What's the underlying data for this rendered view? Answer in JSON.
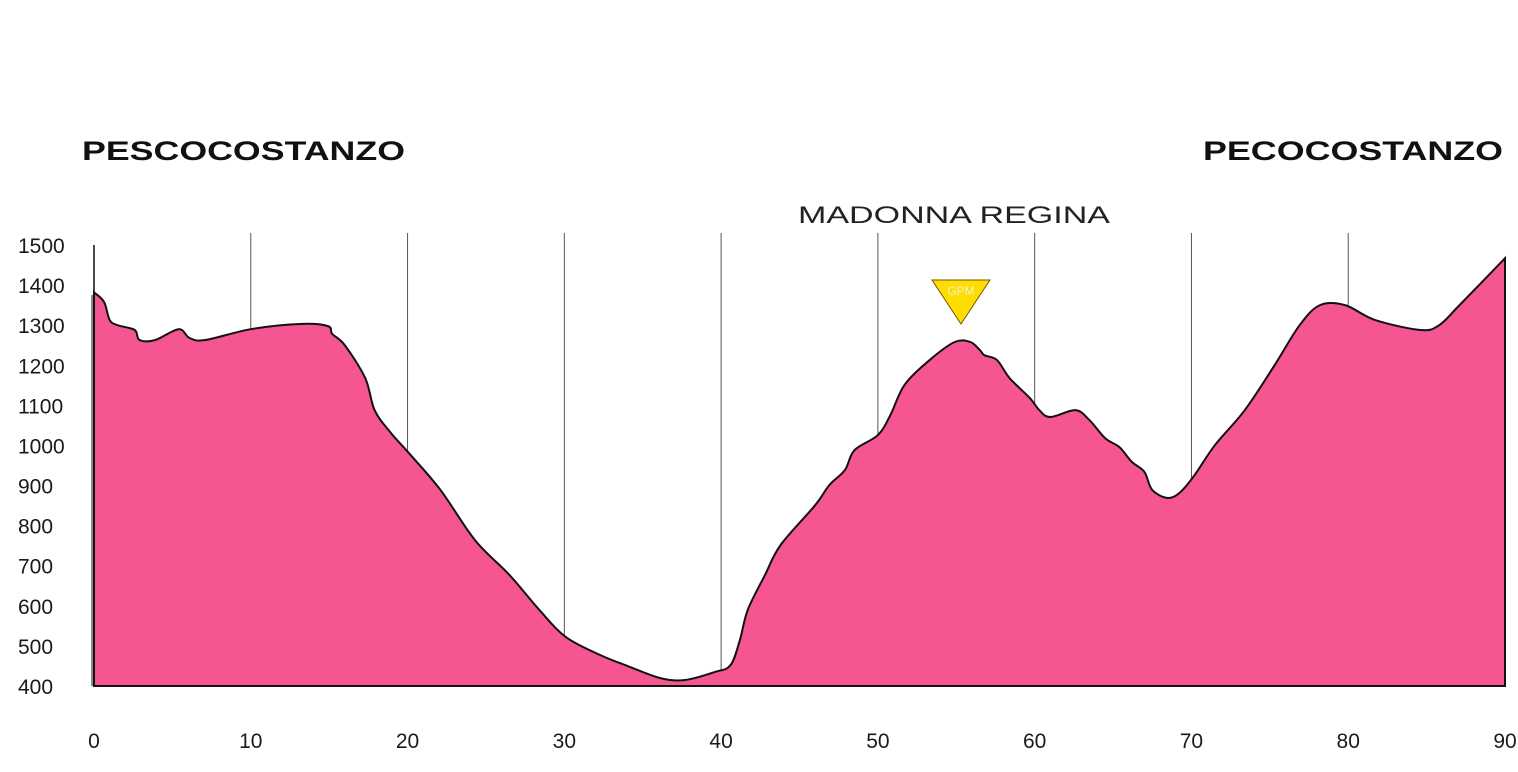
{
  "chart_data": {
    "type": "area",
    "title": "",
    "start_label": "PESCOCOSTANZO",
    "finish_label": "PECOCOSTANZO",
    "climb": {
      "name": "MADONNA REGINA",
      "km": 55.3,
      "badge": "GPM"
    },
    "xlabel": "",
    "ylabel": "",
    "xlim": [
      0,
      90
    ],
    "ylim": [
      400,
      1500
    ],
    "x_ticks": [
      0,
      10,
      20,
      30,
      40,
      50,
      60,
      70,
      80,
      90
    ],
    "y_ticks": [
      400,
      500,
      600,
      700,
      800,
      900,
      1000,
      1100,
      1200,
      1300,
      1400,
      1500
    ],
    "grid": "vertical",
    "colors": {
      "fill": "#F55591",
      "line": "#111111",
      "grid": "#555555",
      "badge": "#FFDD00"
    },
    "profile": [
      [
        0,
        1382
      ],
      [
        0.64,
        1358
      ],
      [
        1.0,
        1313
      ],
      [
        1.5,
        1300
      ],
      [
        2.6,
        1288
      ],
      [
        2.9,
        1263
      ],
      [
        3.9,
        1263
      ],
      [
        5.4,
        1290
      ],
      [
        6.1,
        1268
      ],
      [
        7.1,
        1263
      ],
      [
        10,
        1290
      ],
      [
        13.1,
        1303
      ],
      [
        14.9,
        1298
      ],
      [
        15.2,
        1278
      ],
      [
        16,
        1250
      ],
      [
        17.3,
        1168
      ],
      [
        17.9,
        1088
      ],
      [
        18.9,
        1033
      ],
      [
        20.2,
        976
      ],
      [
        22.1,
        889
      ],
      [
        24.3,
        764
      ],
      [
        26.5,
        677
      ],
      [
        28.4,
        590
      ],
      [
        30.1,
        522
      ],
      [
        32.3,
        477
      ],
      [
        33.9,
        452
      ],
      [
        36.1,
        420
      ],
      [
        37.7,
        415
      ],
      [
        39.6,
        435
      ],
      [
        40.6,
        452
      ],
      [
        41.2,
        515
      ],
      [
        41.7,
        590
      ],
      [
        42.8,
        677
      ],
      [
        43.8,
        752
      ],
      [
        46,
        851
      ],
      [
        46.9,
        901
      ],
      [
        47.9,
        939
      ],
      [
        48.5,
        988
      ],
      [
        50,
        1026
      ],
      [
        50.8,
        1076
      ],
      [
        51.7,
        1151
      ],
      [
        53.3,
        1213
      ],
      [
        54.9,
        1258
      ],
      [
        55.9,
        1258
      ],
      [
        56.5,
        1238
      ],
      [
        56.8,
        1225
      ],
      [
        57.6,
        1213
      ],
      [
        58.4,
        1168
      ],
      [
        59.7,
        1118
      ],
      [
        60.3,
        1088
      ],
      [
        61,
        1071
      ],
      [
        62.6,
        1088
      ],
      [
        63.5,
        1063
      ],
      [
        64.5,
        1018
      ],
      [
        65.4,
        996
      ],
      [
        66.2,
        959
      ],
      [
        67,
        934
      ],
      [
        67.5,
        889
      ],
      [
        68.5,
        869
      ],
      [
        69.3,
        884
      ],
      [
        70.2,
        926
      ],
      [
        71.5,
        1001
      ],
      [
        73.4,
        1088
      ],
      [
        75.3,
        1200
      ],
      [
        76.9,
        1300
      ],
      [
        78.2,
        1350
      ],
      [
        79.8,
        1350
      ],
      [
        81.7,
        1313
      ],
      [
        84.6,
        1288
      ],
      [
        85.8,
        1300
      ],
      [
        87.1,
        1350
      ],
      [
        90,
        1467
      ]
    ]
  }
}
